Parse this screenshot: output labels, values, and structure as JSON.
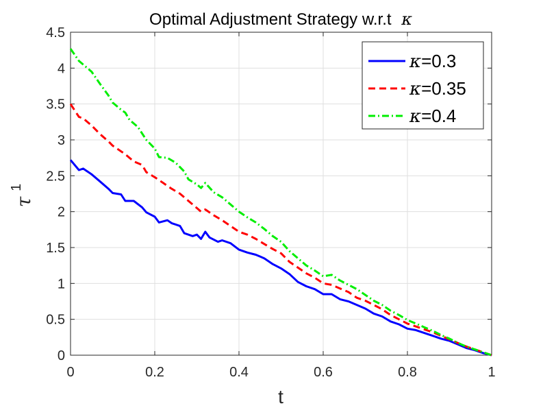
{
  "chart_data": {
    "type": "line",
    "title": "Optimal Adjustment Strategy w.r.t",
    "title_symbol": "κ",
    "xlabel": "t",
    "ylabel": "τ",
    "ylabel_superscript": "1",
    "xlim": [
      0,
      1
    ],
    "ylim": [
      0,
      4.5
    ],
    "x_ticks": [
      "0",
      "0.2",
      "0.4",
      "0.6",
      "0.8",
      "1"
    ],
    "y_ticks": [
      "0",
      "0.5",
      "1",
      "1.5",
      "2",
      "2.5",
      "3",
      "3.5",
      "4",
      "4.5"
    ],
    "grid": true,
    "legend_position": "top-right",
    "series": [
      {
        "name": "κ=0.3",
        "legend_symbol": "κ",
        "legend_value": "=0.3",
        "color": "#0000ff",
        "style": "solid",
        "points": [
          [
            0.0,
            2.72
          ],
          [
            0.02,
            2.58
          ],
          [
            0.03,
            2.6
          ],
          [
            0.05,
            2.52
          ],
          [
            0.07,
            2.42
          ],
          [
            0.09,
            2.32
          ],
          [
            0.1,
            2.26
          ],
          [
            0.12,
            2.24
          ],
          [
            0.13,
            2.15
          ],
          [
            0.15,
            2.15
          ],
          [
            0.17,
            2.06
          ],
          [
            0.18,
            1.99
          ],
          [
            0.2,
            1.93
          ],
          [
            0.21,
            1.85
          ],
          [
            0.23,
            1.88
          ],
          [
            0.24,
            1.84
          ],
          [
            0.26,
            1.8
          ],
          [
            0.27,
            1.7
          ],
          [
            0.29,
            1.66
          ],
          [
            0.3,
            1.68
          ],
          [
            0.31,
            1.62
          ],
          [
            0.32,
            1.72
          ],
          [
            0.33,
            1.64
          ],
          [
            0.35,
            1.58
          ],
          [
            0.36,
            1.6
          ],
          [
            0.38,
            1.56
          ],
          [
            0.4,
            1.47
          ],
          [
            0.42,
            1.43
          ],
          [
            0.44,
            1.4
          ],
          [
            0.46,
            1.35
          ],
          [
            0.48,
            1.27
          ],
          [
            0.5,
            1.21
          ],
          [
            0.52,
            1.13
          ],
          [
            0.54,
            1.02
          ],
          [
            0.56,
            0.96
          ],
          [
            0.58,
            0.92
          ],
          [
            0.6,
            0.85
          ],
          [
            0.62,
            0.85
          ],
          [
            0.64,
            0.78
          ],
          [
            0.66,
            0.75
          ],
          [
            0.68,
            0.7
          ],
          [
            0.7,
            0.65
          ],
          [
            0.72,
            0.58
          ],
          [
            0.74,
            0.54
          ],
          [
            0.76,
            0.47
          ],
          [
            0.78,
            0.43
          ],
          [
            0.8,
            0.37
          ],
          [
            0.82,
            0.35
          ],
          [
            0.84,
            0.31
          ],
          [
            0.86,
            0.27
          ],
          [
            0.88,
            0.23
          ],
          [
            0.9,
            0.2
          ],
          [
            0.92,
            0.15
          ],
          [
            0.94,
            0.1
          ],
          [
            0.96,
            0.07
          ],
          [
            0.98,
            0.03
          ],
          [
            1.0,
            0.0
          ]
        ]
      },
      {
        "name": "κ=0.35",
        "legend_symbol": "κ",
        "legend_value": "=0.35",
        "color": "#ff0000",
        "style": "dashed",
        "points": [
          [
            0.0,
            3.5
          ],
          [
            0.02,
            3.32
          ],
          [
            0.03,
            3.3
          ],
          [
            0.05,
            3.2
          ],
          [
            0.07,
            3.08
          ],
          [
            0.09,
            2.98
          ],
          [
            0.1,
            2.92
          ],
          [
            0.12,
            2.84
          ],
          [
            0.13,
            2.8
          ],
          [
            0.15,
            2.7
          ],
          [
            0.17,
            2.65
          ],
          [
            0.18,
            2.55
          ],
          [
            0.2,
            2.48
          ],
          [
            0.22,
            2.4
          ],
          [
            0.24,
            2.32
          ],
          [
            0.26,
            2.25
          ],
          [
            0.28,
            2.15
          ],
          [
            0.3,
            2.05
          ],
          [
            0.31,
            2.0
          ],
          [
            0.32,
            2.03
          ],
          [
            0.34,
            1.95
          ],
          [
            0.36,
            1.88
          ],
          [
            0.38,
            1.8
          ],
          [
            0.4,
            1.72
          ],
          [
            0.42,
            1.68
          ],
          [
            0.44,
            1.62
          ],
          [
            0.46,
            1.55
          ],
          [
            0.48,
            1.48
          ],
          [
            0.5,
            1.42
          ],
          [
            0.52,
            1.3
          ],
          [
            0.54,
            1.22
          ],
          [
            0.56,
            1.14
          ],
          [
            0.58,
            1.08
          ],
          [
            0.6,
            1.0
          ],
          [
            0.62,
            0.98
          ],
          [
            0.64,
            0.93
          ],
          [
            0.66,
            0.88
          ],
          [
            0.68,
            0.8
          ],
          [
            0.7,
            0.76
          ],
          [
            0.72,
            0.7
          ],
          [
            0.74,
            0.64
          ],
          [
            0.76,
            0.56
          ],
          [
            0.78,
            0.5
          ],
          [
            0.8,
            0.44
          ],
          [
            0.82,
            0.4
          ],
          [
            0.84,
            0.36
          ],
          [
            0.86,
            0.32
          ],
          [
            0.88,
            0.27
          ],
          [
            0.9,
            0.22
          ],
          [
            0.92,
            0.17
          ],
          [
            0.94,
            0.12
          ],
          [
            0.96,
            0.08
          ],
          [
            0.98,
            0.04
          ],
          [
            1.0,
            0.0
          ]
        ]
      },
      {
        "name": "κ=0.4",
        "legend_symbol": "κ",
        "legend_value": "=0.4",
        "color": "#00ee00",
        "style": "dashdot",
        "points": [
          [
            0.0,
            4.27
          ],
          [
            0.02,
            4.1
          ],
          [
            0.03,
            4.05
          ],
          [
            0.05,
            3.95
          ],
          [
            0.07,
            3.78
          ],
          [
            0.09,
            3.62
          ],
          [
            0.1,
            3.52
          ],
          [
            0.12,
            3.42
          ],
          [
            0.13,
            3.38
          ],
          [
            0.14,
            3.28
          ],
          [
            0.16,
            3.18
          ],
          [
            0.18,
            3.0
          ],
          [
            0.2,
            2.88
          ],
          [
            0.21,
            2.76
          ],
          [
            0.23,
            2.75
          ],
          [
            0.25,
            2.68
          ],
          [
            0.27,
            2.56
          ],
          [
            0.28,
            2.45
          ],
          [
            0.3,
            2.38
          ],
          [
            0.31,
            2.33
          ],
          [
            0.32,
            2.4
          ],
          [
            0.34,
            2.27
          ],
          [
            0.36,
            2.2
          ],
          [
            0.38,
            2.1
          ],
          [
            0.4,
            2.0
          ],
          [
            0.42,
            1.92
          ],
          [
            0.44,
            1.85
          ],
          [
            0.46,
            1.76
          ],
          [
            0.48,
            1.66
          ],
          [
            0.5,
            1.58
          ],
          [
            0.52,
            1.45
          ],
          [
            0.54,
            1.35
          ],
          [
            0.56,
            1.25
          ],
          [
            0.58,
            1.18
          ],
          [
            0.6,
            1.1
          ],
          [
            0.62,
            1.12
          ],
          [
            0.64,
            1.04
          ],
          [
            0.66,
            0.98
          ],
          [
            0.68,
            0.92
          ],
          [
            0.7,
            0.84
          ],
          [
            0.72,
            0.76
          ],
          [
            0.74,
            0.7
          ],
          [
            0.76,
            0.62
          ],
          [
            0.78,
            0.56
          ],
          [
            0.8,
            0.49
          ],
          [
            0.82,
            0.44
          ],
          [
            0.84,
            0.39
          ],
          [
            0.86,
            0.34
          ],
          [
            0.88,
            0.28
          ],
          [
            0.9,
            0.23
          ],
          [
            0.92,
            0.17
          ],
          [
            0.94,
            0.12
          ],
          [
            0.96,
            0.08
          ],
          [
            0.98,
            0.04
          ],
          [
            1.0,
            0.0
          ]
        ]
      }
    ]
  }
}
